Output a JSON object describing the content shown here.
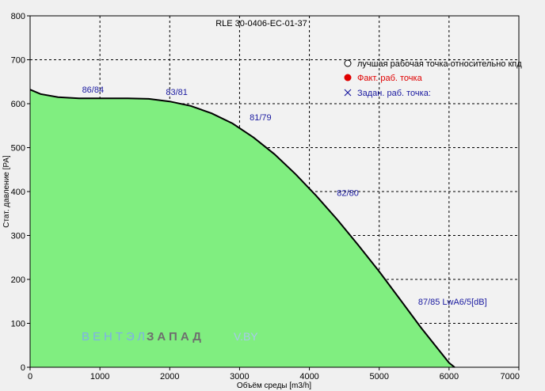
{
  "chart_data": {
    "type": "area",
    "title": "RLE 30-0406-EC-01-37",
    "xlabel": "Объём среды [m3/h]",
    "ylabel": "Стат. давление [PA]",
    "xlim": [
      0,
      7000
    ],
    "ylim": [
      0,
      800
    ],
    "x_ticks": [
      "0",
      "1000",
      "2000",
      "3000",
      "4000",
      "5000",
      "6000",
      "7000"
    ],
    "y_ticks": [
      "0",
      "100",
      "200",
      "300",
      "400",
      "500",
      "600",
      "700",
      "800"
    ],
    "grid": true,
    "fill_color": "#80ee80",
    "line_color": "#000000",
    "series": [
      {
        "x": [
          0,
          150,
          400,
          700,
          1000,
          1400,
          1700,
          2000,
          2300,
          2600,
          2900,
          3200,
          3500,
          3800,
          4100,
          4400,
          4700,
          5000,
          5300,
          5600,
          5850,
          6000,
          6080
        ],
        "y": [
          632,
          622,
          615,
          612,
          612,
          612,
          611,
          605,
          595,
          578,
          555,
          523,
          485,
          440,
          390,
          336,
          278,
          218,
          154,
          90,
          40,
          10,
          0
        ]
      }
    ],
    "annotations": [
      {
        "text": "86/84",
        "x": 900,
        "y": 625
      },
      {
        "text": "83/81",
        "x": 2100,
        "y": 620
      },
      {
        "text": "81/79",
        "x": 3300,
        "y": 562
      },
      {
        "text": "82/80",
        "x": 4550,
        "y": 390
      },
      {
        "text": "87/85 LwA6/5[dB]",
        "x": 6050,
        "y": 142
      }
    ],
    "legend_position": "top-right",
    "legend": [
      {
        "marker": "open-circle",
        "label": "лучшая рабочая точка относительно кпд",
        "color": "#000000"
      },
      {
        "marker": "filled-circle",
        "label": "Факт.  раб. точка",
        "color": "#e00000"
      },
      {
        "marker": "x-cross",
        "label": "Задан. раб. точка:",
        "color": "#1a1aa0"
      }
    ]
  },
  "watermark": {
    "part1": "ВЕНТЭЛ",
    "part2": "ЗАПАД",
    "part3": "V.BY"
  }
}
